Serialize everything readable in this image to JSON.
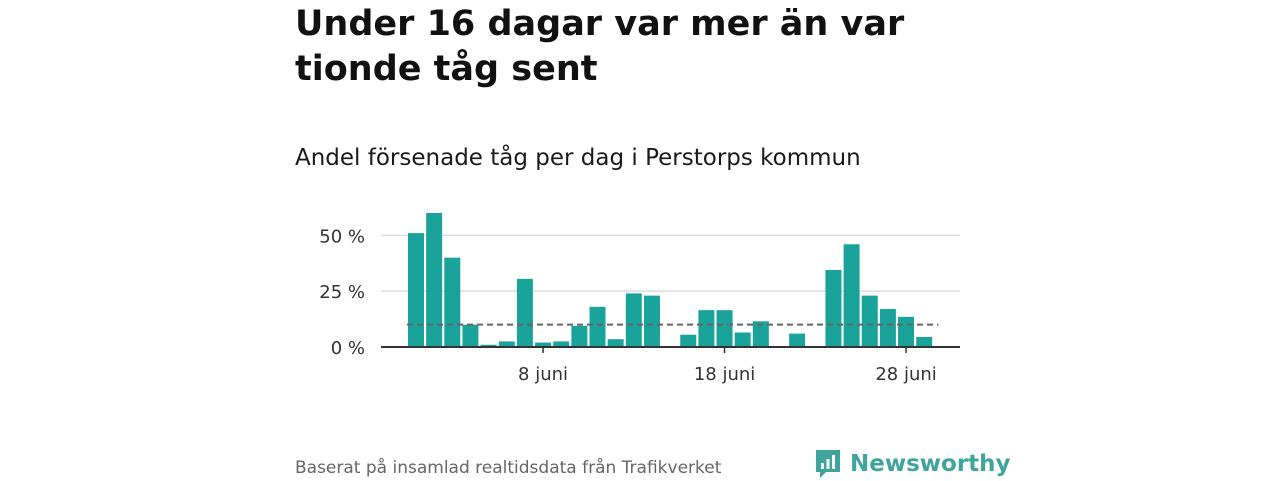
{
  "title": "Under 16 dagar var mer än var tionde tåg sent",
  "subtitle": "Andel försenade tåg per dag i Perstorps kommun",
  "footer": "Baserat på insamlad realtidsdata från Trafikverket",
  "brand": "Newsworthy",
  "colors": {
    "bar": "#1aa39a",
    "grid": "#dddddd",
    "axis": "#333333",
    "reference_line": "#666666",
    "brand": "#3fa59c"
  },
  "chart_data": {
    "type": "bar",
    "xlabel": "",
    "ylabel": "",
    "ylim": [
      0,
      60
    ],
    "yticks": [
      0,
      25,
      50
    ],
    "ytick_labels": [
      "0 %",
      "25 %",
      "50 %"
    ],
    "x_start_day": 1,
    "xtick_days": [
      8,
      18,
      28
    ],
    "xtick_labels": [
      "8 juni",
      "18 juni",
      "28 juni"
    ],
    "categories": [
      "1 juni",
      "2 juni",
      "3 juni",
      "4 juni",
      "5 juni",
      "6 juni",
      "7 juni",
      "8 juni",
      "9 juni",
      "10 juni",
      "11 juni",
      "12 juni",
      "13 juni",
      "14 juni",
      "15 juni",
      "16 juni",
      "17 juni",
      "18 juni",
      "19 juni",
      "20 juni",
      "21 juni",
      "22 juni",
      "23 juni",
      "24 juni",
      "25 juni",
      "26 juni",
      "27 juni",
      "28 juni",
      "29 juni",
      "30 juni"
    ],
    "values": [
      51,
      60,
      40,
      10,
      1,
      2.5,
      30.5,
      2,
      2.5,
      9.5,
      18,
      3.5,
      24,
      23,
      0,
      5.5,
      16.5,
      16.5,
      6.5,
      11.5,
      0,
      6,
      0,
      34.5,
      46,
      23,
      17,
      13.5,
      4.5,
      0
    ],
    "reference_line": 10,
    "grid": true
  }
}
